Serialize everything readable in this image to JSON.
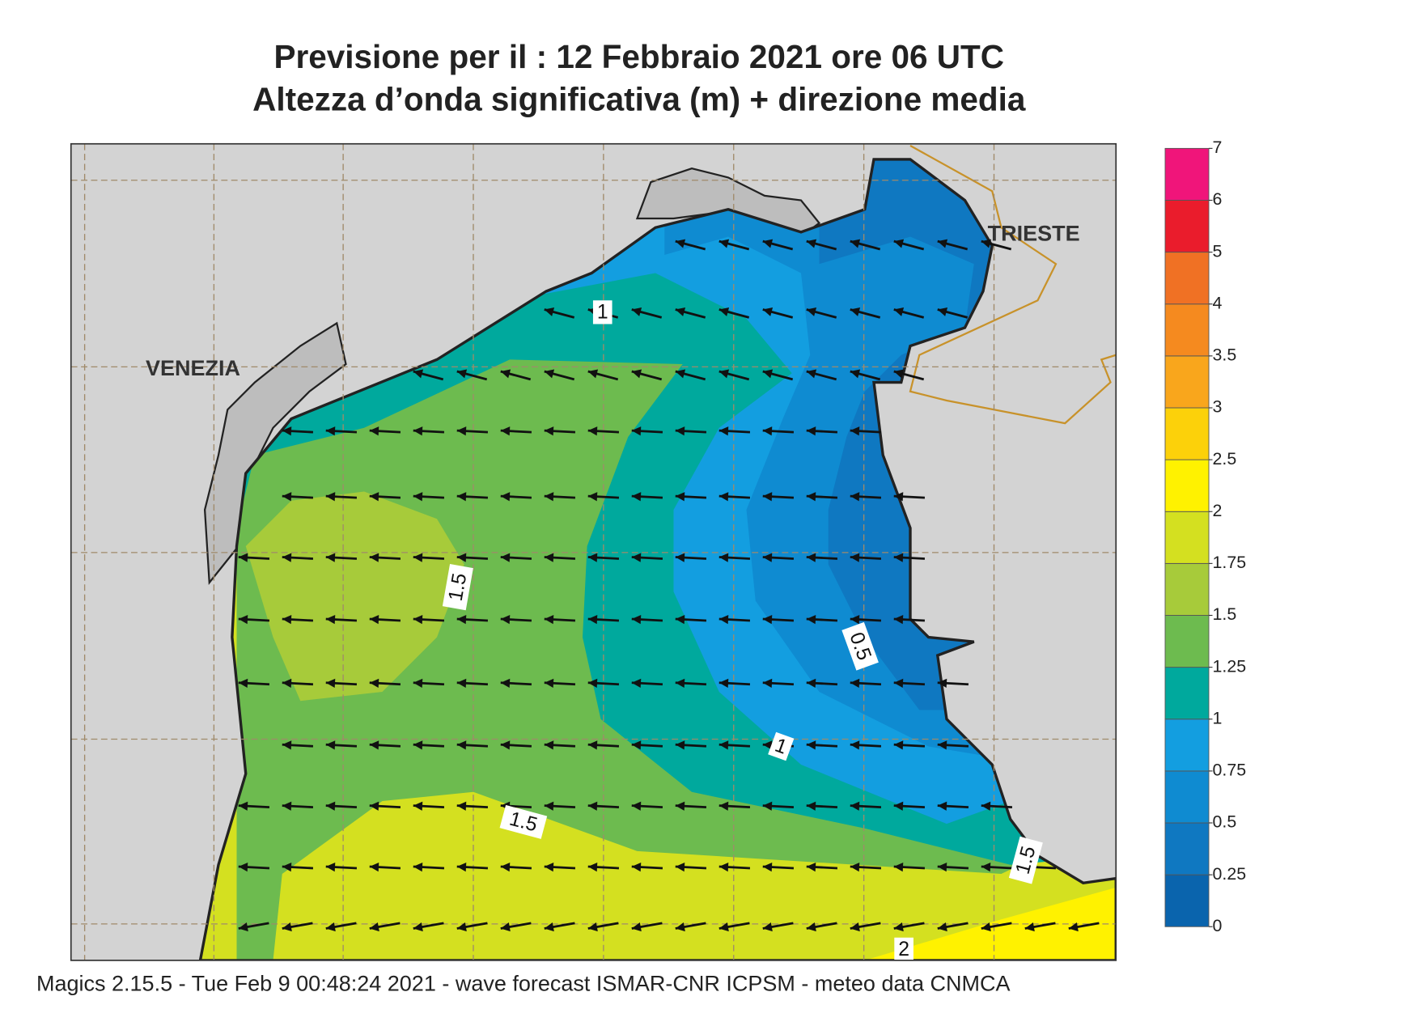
{
  "header": {
    "title_line1": "Previsione per il  :  12  Febbraio 2021   ore 06 UTC",
    "title_line2": "Altezza d’onda significativa (m) + direzione media"
  },
  "map": {
    "cities": [
      "VENEZIA",
      "TRIESTE"
    ],
    "contour_labels": [
      "1",
      "1.5",
      "0.5",
      "1",
      "1.5",
      "1.5",
      "2"
    ]
  },
  "legend": {
    "ticks": [
      0,
      0.25,
      0.5,
      0.75,
      1,
      1.25,
      1.5,
      1.75,
      2,
      2.5,
      3,
      3.5,
      4,
      5,
      6,
      7
    ],
    "colors": [
      "#0a64ad",
      "#0f78c1",
      "#0f8bd1",
      "#139ee0",
      "#00a99d",
      "#6dbb4f",
      "#a7cb3a",
      "#d4e020",
      "#fff200",
      "#fcd10a",
      "#f9a61c",
      "#f58a1f",
      "#f07124",
      "#ea1c2c",
      "#f0157a"
    ]
  },
  "footer": "Magics 2.15.5 - Tue Feb  9 00:48:24 2021 - wave forecast  ISMAR-CNR  ICPSM - meteo data   CNMCA"
}
